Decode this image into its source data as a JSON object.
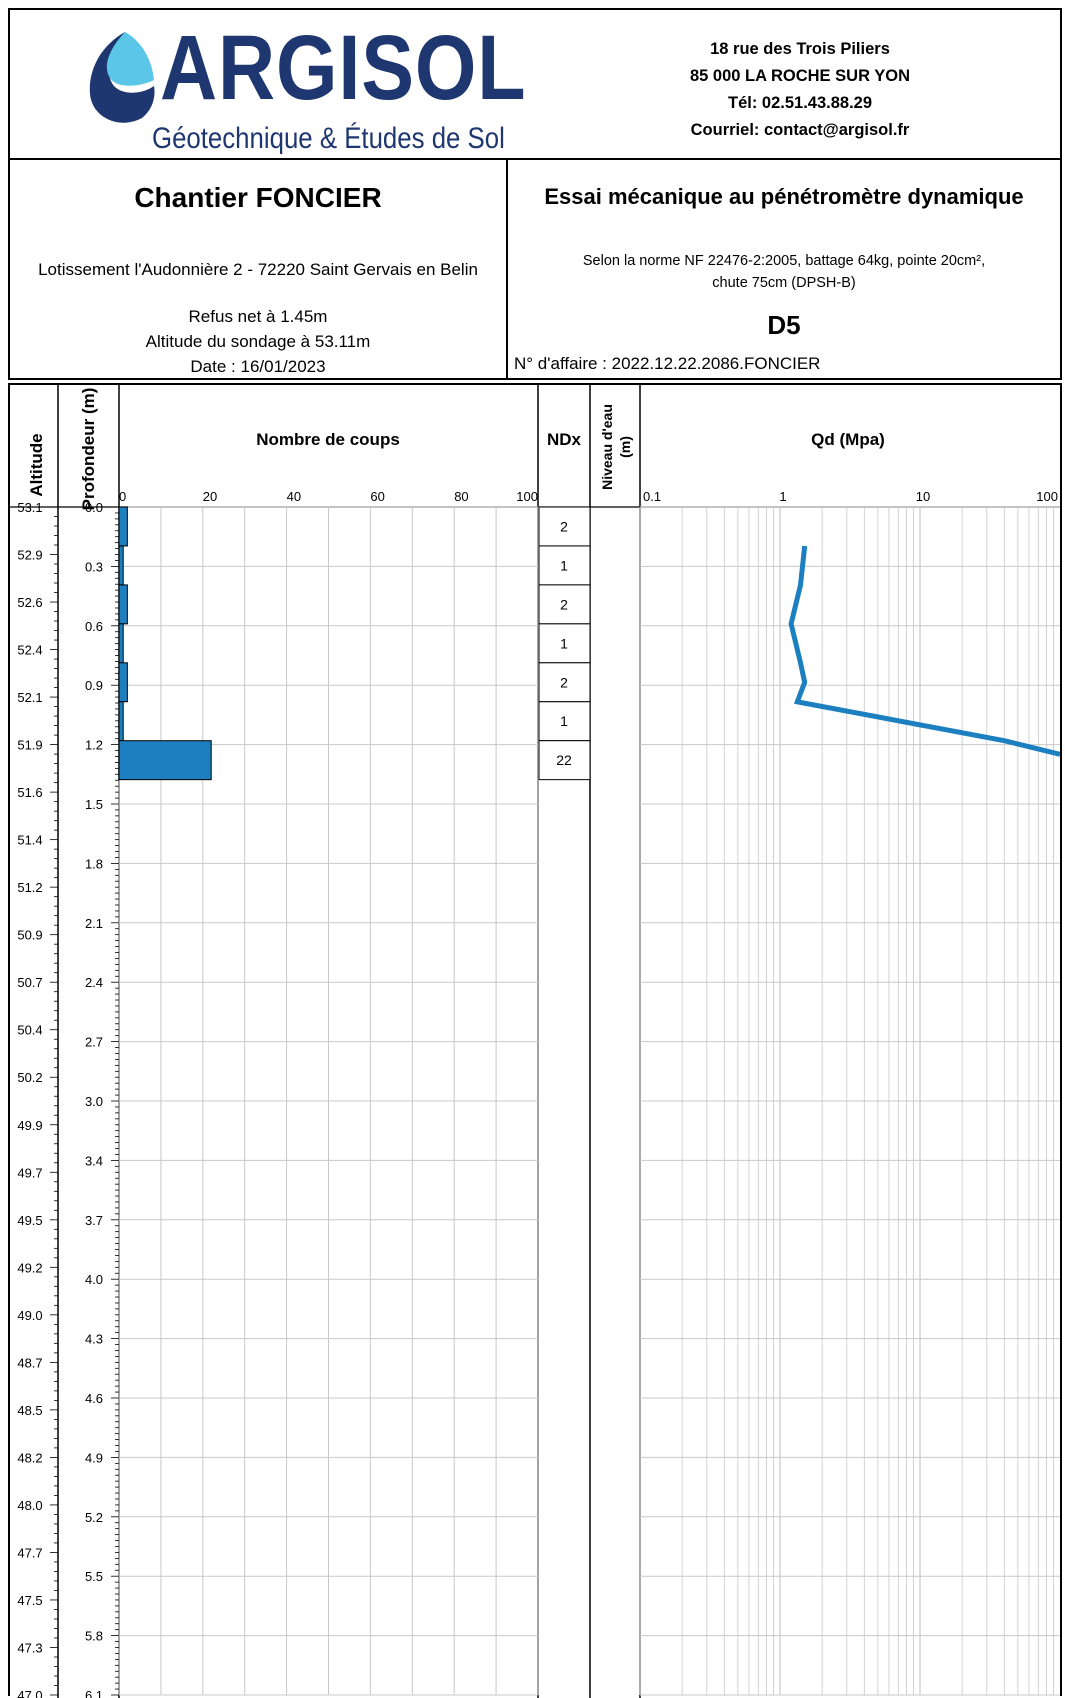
{
  "company": {
    "logo_word": "ARGISOL",
    "logo_tagline": "Géotechnique & Études de Sol",
    "address_lines": [
      "18 rue des Trois Piliers",
      "85 000 LA ROCHE SUR YON",
      "Tél: 02.51.43.88.29",
      "Courriel: contact@argisol.fr"
    ],
    "brand_color": "#1f3770",
    "accent_color": "#5cc6e8"
  },
  "site": {
    "title": "Chantier FONCIER",
    "location": "Lotissement l'Audonnière 2 - 72220 Saint Gervais en Belin",
    "refus": "Refus net à 1.45m",
    "altitude": "Altitude du sondage à 53.11m",
    "date": "Date :  16/01/2023"
  },
  "test": {
    "title": "Essai mécanique au pénétromètre dynamique",
    "norm_line1": "Selon la norme NF 22476-2:2005, battage 64kg, pointe 20cm²,",
    "norm_line2": "chute 75cm (DPSH-B)",
    "id": "D5",
    "affaire": "N° d'affaire : 2022.12.22.2086.FONCIER"
  },
  "columns": {
    "altitude": "Altitude",
    "profondeur": "Profondeur (m)",
    "coups": "Nombre de coups",
    "ndx": "NDx",
    "niveau_line1": "Niveau d'eau",
    "niveau_line2": "(m)",
    "qd": "Qd (Mpa)"
  },
  "chart_data": {
    "type": "bar",
    "colors": {
      "bar": "#1b7fc0",
      "line": "#1b7fc0",
      "grid": "#c8c8c8"
    },
    "depth_range_m": [
      0,
      6.1
    ],
    "depth_ticks": [
      "0.0",
      "0.3",
      "0.6",
      "0.9",
      "1.2",
      "1.5",
      "1.8",
      "2.1",
      "2.4",
      "2.7",
      "3.0",
      "3.4",
      "3.7",
      "4.0",
      "4.3",
      "4.6",
      "4.9",
      "5.2",
      "5.5",
      "5.8",
      "6.1"
    ],
    "altitude_ticks": [
      "53.1",
      "52.9",
      "52.6",
      "52.4",
      "52.1",
      "51.9",
      "51.6",
      "51.4",
      "51.2",
      "50.9",
      "50.7",
      "50.4",
      "50.2",
      "49.9",
      "49.7",
      "49.5",
      "49.2",
      "49.0",
      "48.7",
      "48.5",
      "48.2",
      "48.0",
      "47.7",
      "47.5",
      "47.3",
      "47.0"
    ],
    "coups_axis": {
      "range": [
        0,
        100
      ],
      "ticks": [
        "0",
        "20",
        "40",
        "60",
        "80",
        "100"
      ]
    },
    "depth_intervals": [
      [
        0,
        0.2
      ],
      [
        0.2,
        0.4
      ],
      [
        0.4,
        0.6
      ],
      [
        0.6,
        0.8
      ],
      [
        0.8,
        1.0
      ],
      [
        1.0,
        1.2
      ],
      [
        1.2,
        1.4
      ]
    ],
    "coups": [
      2,
      1,
      2,
      1,
      2,
      1,
      22
    ],
    "ndx": [
      "2",
      "1",
      "2",
      "1",
      "2",
      "1",
      "22"
    ],
    "qd_axis": {
      "scale": "log",
      "range": [
        0.1,
        100
      ],
      "ticks": [
        "0.1",
        "1",
        "10",
        "100"
      ]
    },
    "qd": {
      "depth": [
        0.2,
        0.4,
        0.6,
        0.8,
        0.9,
        1.0,
        1.2,
        1.27
      ],
      "value": [
        1.5,
        1.4,
        1.2,
        1.4,
        1.5,
        1.33,
        40,
        100
      ]
    }
  }
}
